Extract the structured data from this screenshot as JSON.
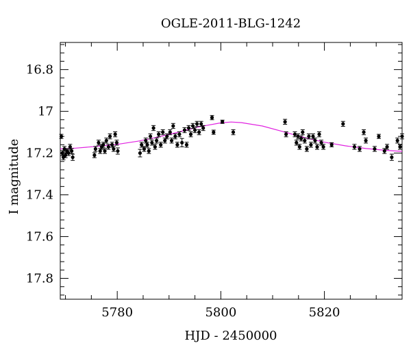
{
  "chart_data": {
    "type": "scatter",
    "title": "OGLE-2011-BLG-1242",
    "xlabel": "HJD - 2450000",
    "ylabel": "I magnitude",
    "xlim": [
      5769,
      5835
    ],
    "ylim": [
      17.9,
      16.67
    ],
    "y_inverted": true,
    "x_ticks": [
      5780,
      5800,
      5820
    ],
    "y_ticks": [
      "16.8",
      "17",
      "17.2",
      "17.4",
      "17.6",
      "17.8"
    ],
    "grid": false,
    "colors": {
      "points": "#000000",
      "model": "#e020e0",
      "axes": "#000000"
    },
    "series": [
      {
        "kind": "points",
        "x": [
          5769.2,
          5769.4,
          5769.6,
          5769.8,
          5770.0,
          5770.3,
          5770.6,
          5770.9,
          5771.2,
          5771.4,
          5775.6,
          5775.8,
          5776.4,
          5776.7,
          5777.0,
          5777.3,
          5777.6,
          5777.9,
          5778.3,
          5778.6,
          5779.0,
          5779.3,
          5779.6,
          5779.9,
          5780.1,
          5784.4,
          5784.7,
          5785.2,
          5785.5,
          5785.8,
          5786.1,
          5786.4,
          5786.7,
          5787.0,
          5787.3,
          5787.6,
          5788.0,
          5788.4,
          5788.8,
          5789.2,
          5789.6,
          5790.2,
          5790.5,
          5790.8,
          5791.2,
          5791.6,
          5792.0,
          5792.5,
          5793.0,
          5793.4,
          5793.8,
          5794.2,
          5794.6,
          5795.0,
          5795.4,
          5795.8,
          5796.2,
          5796.6,
          5798.3,
          5798.6,
          5800.3,
          5802.4,
          5812.4,
          5812.6,
          5814.3,
          5814.6,
          5814.9,
          5815.2,
          5815.5,
          5815.8,
          5816.2,
          5816.6,
          5817.0,
          5817.4,
          5817.8,
          5818.2,
          5818.6,
          5819.0,
          5819.4,
          5819.8,
          5821.4,
          5823.6,
          5825.8,
          5826.8,
          5827.6,
          5828.0,
          5829.7,
          5830.5,
          5831.6,
          5832.1,
          5833.0,
          5834.1,
          5834.6,
          5835.0
        ],
        "y": [
          17.12,
          17.2,
          17.22,
          17.18,
          17.21,
          17.19,
          17.2,
          17.17,
          17.19,
          17.22,
          17.21,
          17.18,
          17.15,
          17.19,
          17.17,
          17.16,
          17.19,
          17.14,
          17.17,
          17.12,
          17.16,
          17.18,
          17.11,
          17.15,
          17.19,
          17.2,
          17.16,
          17.18,
          17.14,
          17.16,
          17.19,
          17.12,
          17.15,
          17.08,
          17.17,
          17.14,
          17.11,
          17.16,
          17.1,
          17.14,
          17.12,
          17.1,
          17.14,
          17.07,
          17.12,
          17.16,
          17.11,
          17.15,
          17.09,
          17.16,
          17.08,
          17.11,
          17.07,
          17.09,
          17.06,
          17.1,
          17.06,
          17.08,
          17.03,
          17.1,
          17.05,
          17.1,
          17.05,
          17.11,
          17.11,
          17.15,
          17.12,
          17.17,
          17.13,
          17.1,
          17.14,
          17.18,
          17.12,
          17.16,
          17.12,
          17.14,
          17.17,
          17.11,
          17.15,
          17.17,
          17.16,
          17.06,
          17.17,
          17.18,
          17.1,
          17.14,
          17.18,
          17.12,
          17.19,
          17.17,
          17.22,
          17.14,
          17.17,
          17.12
        ],
        "yerr": [
          0.01,
          0.012,
          0.012,
          0.012,
          0.012,
          0.012,
          0.012,
          0.012,
          0.012,
          0.015,
          0.012,
          0.012,
          0.012,
          0.012,
          0.012,
          0.012,
          0.012,
          0.012,
          0.012,
          0.012,
          0.012,
          0.012,
          0.012,
          0.012,
          0.015,
          0.018,
          0.012,
          0.012,
          0.012,
          0.012,
          0.012,
          0.012,
          0.012,
          0.012,
          0.012,
          0.012,
          0.012,
          0.012,
          0.012,
          0.012,
          0.012,
          0.012,
          0.012,
          0.012,
          0.012,
          0.012,
          0.012,
          0.02,
          0.012,
          0.012,
          0.012,
          0.012,
          0.012,
          0.012,
          0.012,
          0.012,
          0.012,
          0.012,
          0.01,
          0.01,
          0.008,
          0.012,
          0.012,
          0.012,
          0.012,
          0.012,
          0.012,
          0.012,
          0.012,
          0.012,
          0.012,
          0.012,
          0.012,
          0.012,
          0.012,
          0.012,
          0.012,
          0.012,
          0.012,
          0.012,
          0.01,
          0.012,
          0.012,
          0.012,
          0.012,
          0.012,
          0.012,
          0.01,
          0.012,
          0.012,
          0.015,
          0.012,
          0.012,
          0.012
        ]
      },
      {
        "kind": "model-curve",
        "x": [
          5769,
          5772,
          5776,
          5780,
          5784,
          5788,
          5792,
          5796,
          5800,
          5802,
          5804,
          5808,
          5812,
          5816,
          5820,
          5824,
          5828,
          5832,
          5835
        ],
        "y": [
          17.18,
          17.176,
          17.168,
          17.158,
          17.143,
          17.123,
          17.098,
          17.073,
          17.055,
          17.051,
          17.054,
          17.07,
          17.097,
          17.125,
          17.148,
          17.165,
          17.178,
          17.187,
          17.192
        ]
      }
    ]
  }
}
